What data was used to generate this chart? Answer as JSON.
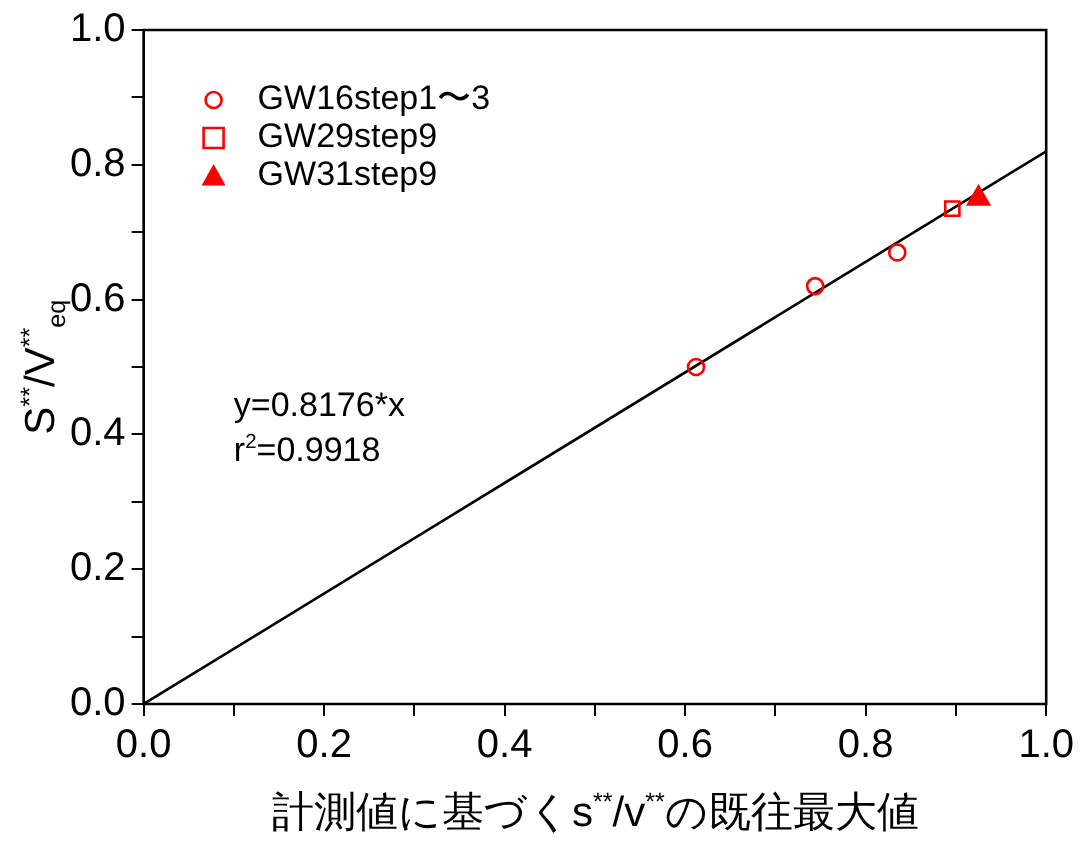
{
  "chart_data": {
    "type": "scatter",
    "xlabel": "計測値に基づくs$^{**}$/v$^{**}$の既往最大値",
    "ylabel": "S$^{**}$/V$^{**}$$_{eq}$",
    "series": [
      {
        "name": "GW16step1〜3",
        "color": "#ff0000",
        "marker": "circle",
        "x": [
          0.612,
          0.744,
          0.835
        ],
        "values": [
          0.5,
          0.62,
          0.67
        ]
      },
      {
        "name": "GW29step9",
        "color": "#ff0000",
        "marker": "square",
        "x": [
          0.896
        ],
        "values": [
          0.735
        ]
      },
      {
        "name": "GW31step9",
        "color": "#ff0000",
        "marker": "triangle",
        "x": [
          0.925
        ],
        "values": [
          0.75
        ]
      },
      {
        "type": "line",
        "color": "#000000",
        "marker": "none",
        "x": [
          0,
          1
        ],
        "values": [
          0,
          0.82
        ]
      }
    ],
    "annotations": [
      "y=0.8176*x",
      "r$^{2}$=0.9918"
    ],
    "xlim": [
      0,
      1
    ],
    "ylim": [
      0,
      1
    ],
    "xticks": [
      {
        "value": 0,
        "label": "0.0"
      },
      {
        "value": 0.1,
        "label": null
      },
      {
        "value": 0.2,
        "label": "0.2"
      },
      {
        "value": 0.3,
        "label": null
      },
      {
        "value": 0.4,
        "label": "0.4"
      },
      {
        "value": 0.5,
        "label": null
      },
      {
        "value": 0.6,
        "label": "0.6"
      },
      {
        "value": 0.7,
        "label": null
      },
      {
        "value": 0.8,
        "label": "0.8"
      },
      {
        "value": 0.9,
        "label": null
      },
      {
        "value": 1,
        "label": "1.0"
      }
    ],
    "yticks": [
      {
        "value": 0,
        "label": "0.0"
      },
      {
        "value": 0.1,
        "label": null
      },
      {
        "value": 0.2,
        "label": "0.2"
      },
      {
        "value": 0.3,
        "label": null
      },
      {
        "value": 0.4,
        "label": "0.4"
      },
      {
        "value": 0.5,
        "label": null
      },
      {
        "value": 0.6,
        "label": "0.6"
      },
      {
        "value": 0.7,
        "label": null
      },
      {
        "value": 0.8,
        "label": "0.8"
      },
      {
        "value": 0.9,
        "label": null
      },
      {
        "value": 1,
        "label": "1.0"
      }
    ],
    "grid": false,
    "legend": "top left"
  }
}
